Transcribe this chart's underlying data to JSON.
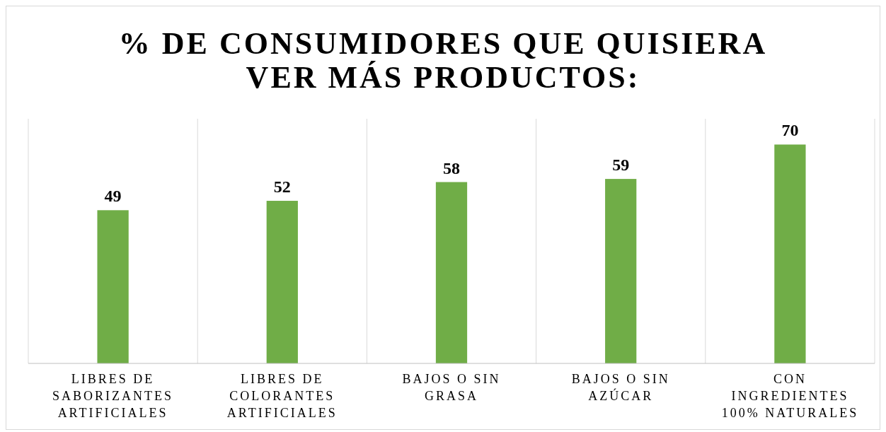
{
  "chart_data": {
    "type": "bar",
    "title": "% DE CONSUMIDORES QUE QUISIERA VER MÁS PRODUCTOS:",
    "categories": [
      "LIBRES DE SABORIZANTES ARTIFICIALES",
      "LIBRES DE COLORANTES ARTIFICIALES",
      "BAJOS O SIN GRASA",
      "BAJOS O SIN AZÚCAR",
      "CON INGREDIENTES 100% NATURALES"
    ],
    "values": [
      49,
      52,
      58,
      59,
      70
    ],
    "color": "#70ad47",
    "data_labels": true,
    "grid": "x"
  }
}
